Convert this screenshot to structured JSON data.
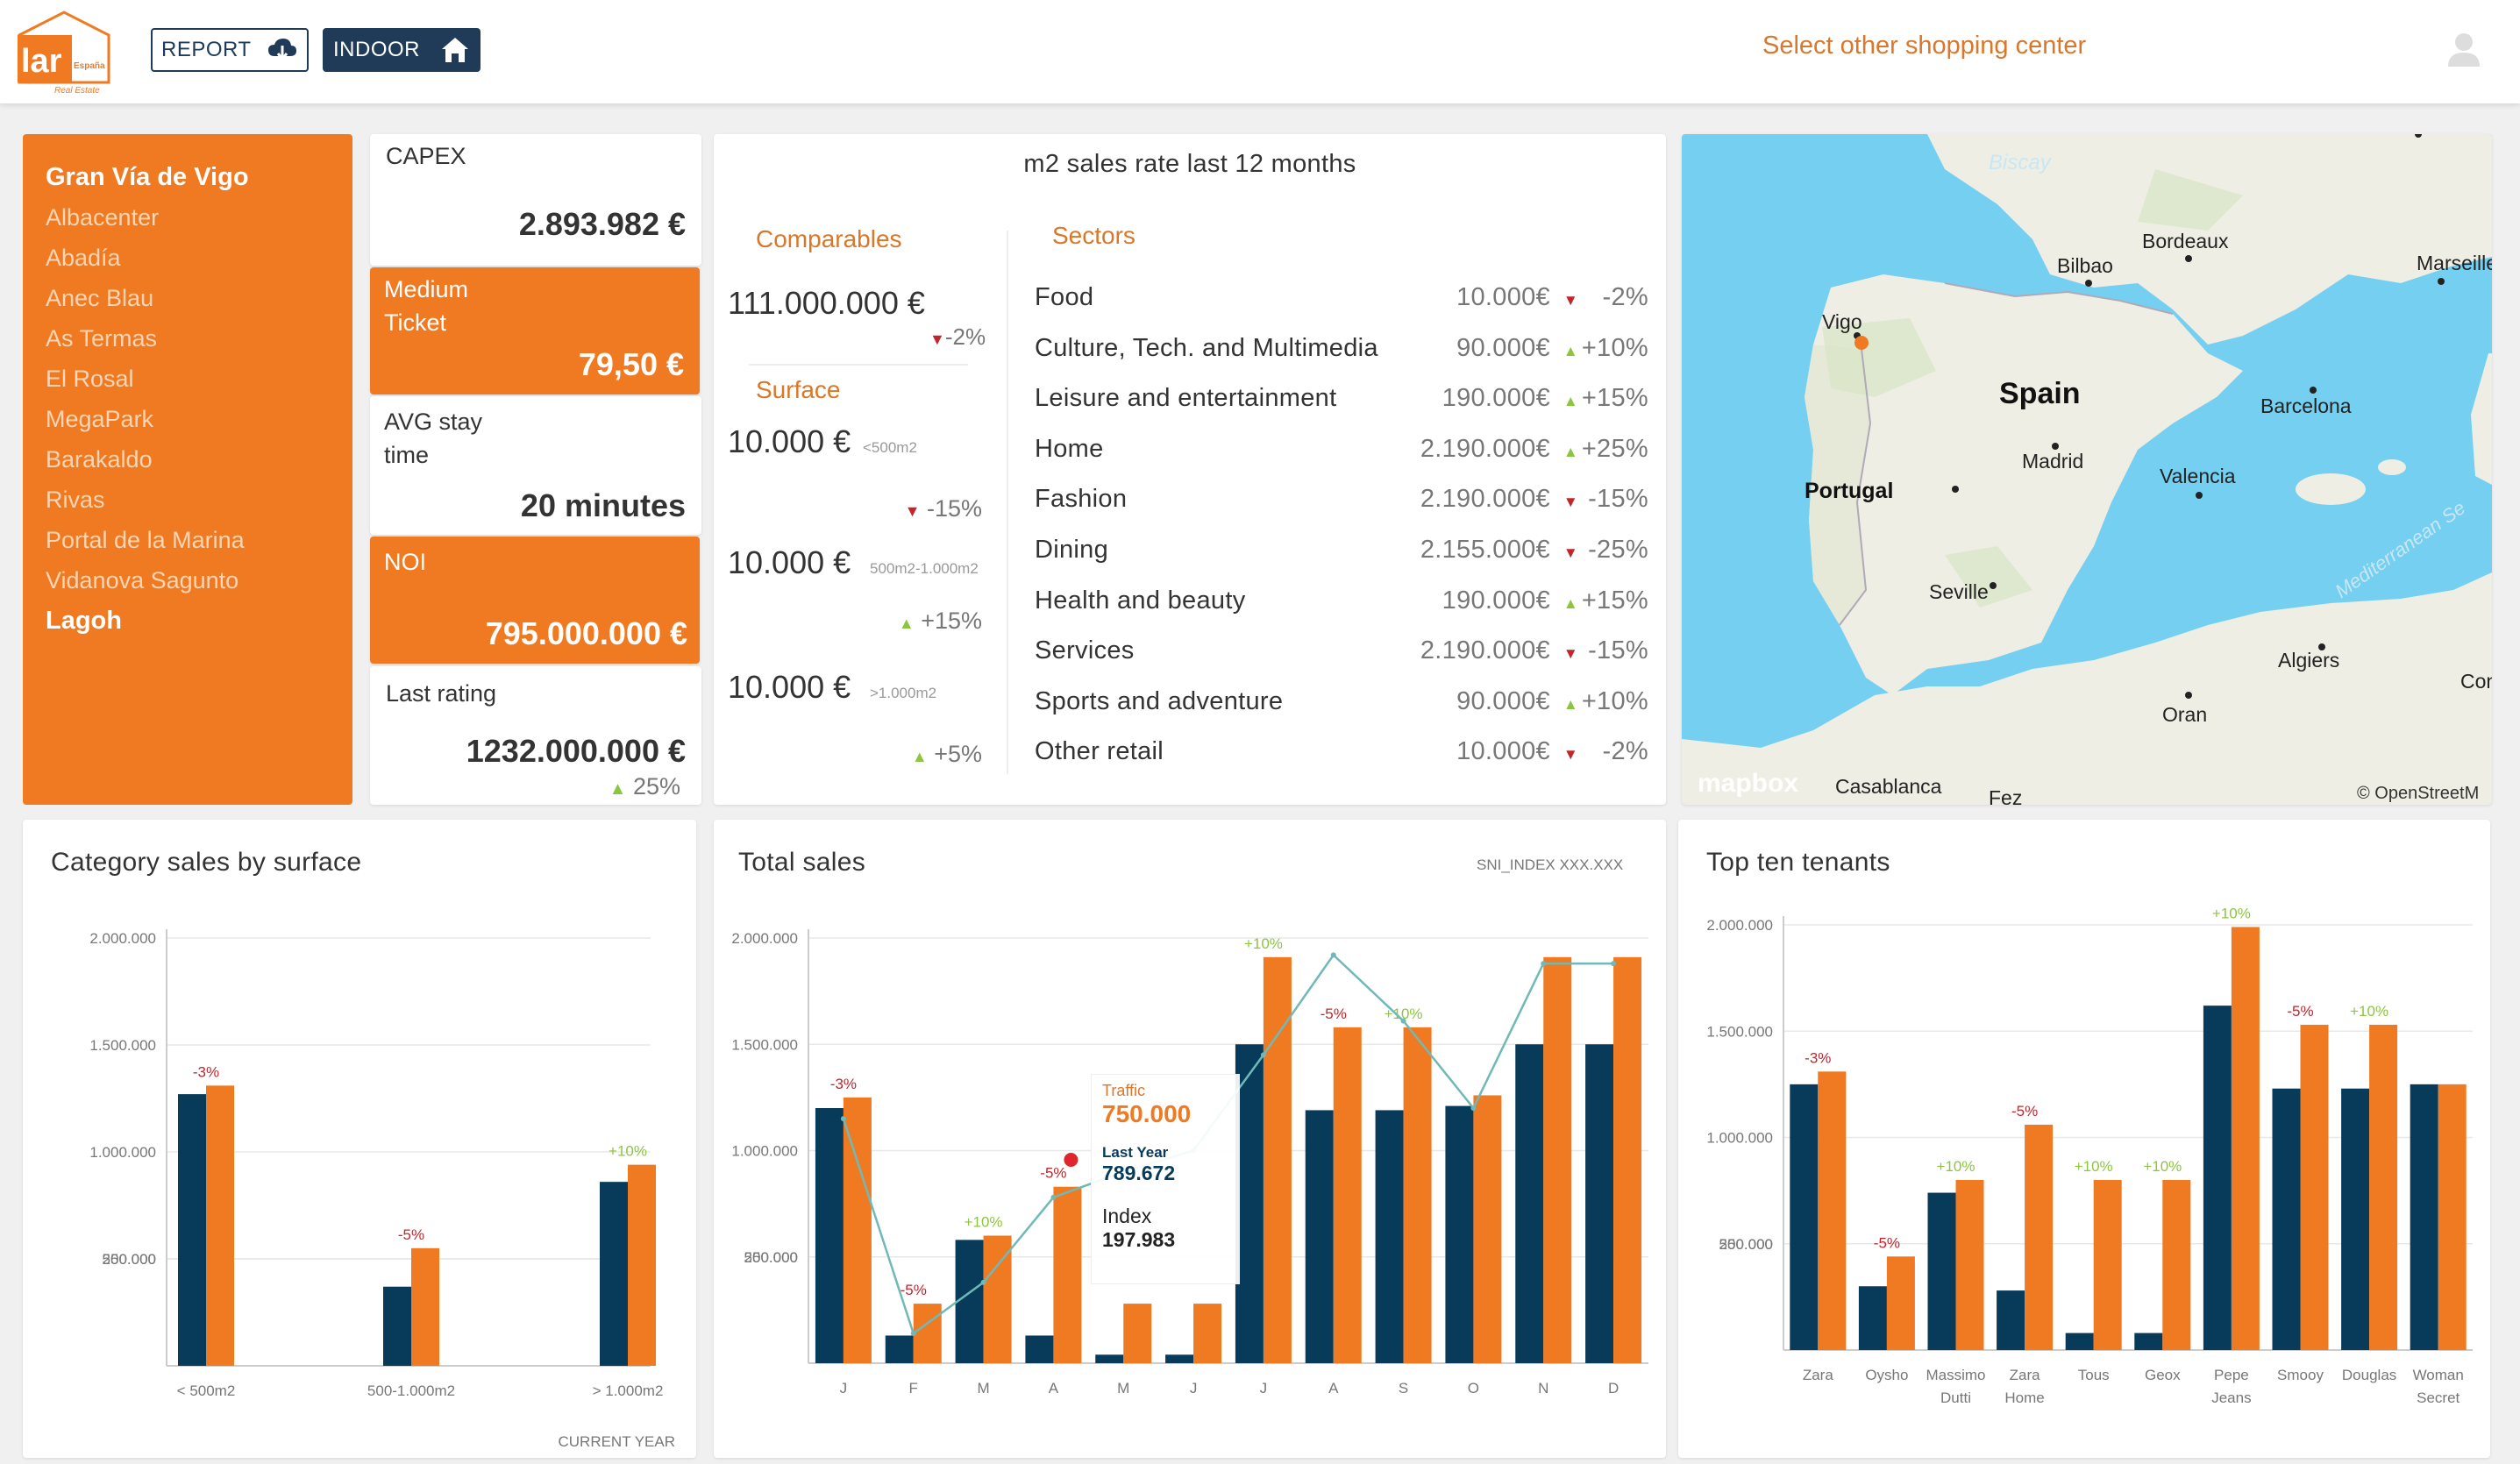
{
  "header": {
    "logo_text": "lar",
    "logo_sub": "España",
    "logo_tag": "Real Estate",
    "report_label": "REPORT",
    "indoor_label": "INDOOR",
    "select_center": "Select other shopping center"
  },
  "centers": [
    "Gran Vía de Vigo",
    "Albacenter",
    "Abadía",
    "Anec Blau",
    "As Termas",
    "El Rosal",
    "MegaPark",
    "Barakaldo",
    "Rivas",
    "Portal de la Marina",
    "Vidanova Sagunto",
    "Lagoh"
  ],
  "kpis": {
    "capex_label": "CAPEX",
    "capex_value": "2.893.982 €",
    "ticket_label_1": "Medium",
    "ticket_label_2": "Ticket",
    "ticket_value": "79,50 €",
    "stay_label_1": "AVG stay",
    "stay_label_2": "time",
    "stay_value": "20 minutes",
    "noi_label": "NOI",
    "noi_value": "795.000.000 €",
    "rating_label": "Last rating",
    "rating_value": "1232.000.000 €",
    "rating_change": "25%"
  },
  "m2": {
    "title": "m2 sales rate last 12 months",
    "comparables_label": "Comparables",
    "comparables_value": "111.000.000 €",
    "comparables_change": "-2%",
    "surface_label": "Surface",
    "surface_rows": [
      {
        "value": "10.000 €",
        "range": "<500m2",
        "change": "-15%",
        "dir": "down"
      },
      {
        "value": "10.000 €",
        "range": "500m2-1.000m2",
        "change": "+15%",
        "dir": "up"
      },
      {
        "value": "10.000 €",
        "range": ">1.000m2",
        "change": "+5%",
        "dir": "up"
      }
    ],
    "sectors_label": "Sectors",
    "sectors": [
      {
        "name": "Food",
        "value": "10.000€",
        "change": "-2%",
        "dir": "down"
      },
      {
        "name": "Culture, Tech. and Multimedia",
        "value": "90.000€",
        "change": "+10%",
        "dir": "up"
      },
      {
        "name": "Leisure and entertainment",
        "value": "190.000€",
        "change": "+15%",
        "dir": "up"
      },
      {
        "name": "Home",
        "value": "2.190.000€",
        "change": "+25%",
        "dir": "up"
      },
      {
        "name": "Fashion",
        "value": "2.190.000€",
        "change": "-15%",
        "dir": "down"
      },
      {
        "name": "Dining",
        "value": "2.155.000€",
        "change": "-25%",
        "dir": "down"
      },
      {
        "name": "Health and beauty",
        "value": "190.000€",
        "change": "+15%",
        "dir": "up"
      },
      {
        "name": "Services",
        "value": "2.190.000€",
        "change": "-15%",
        "dir": "down"
      },
      {
        "name": "Sports and adventure",
        "value": "90.000€",
        "change": "+10%",
        "dir": "up"
      },
      {
        "name": "Other retail",
        "value": "10.000€",
        "change": "-2%",
        "dir": "down"
      }
    ]
  },
  "map": {
    "labels": [
      "Biscay",
      "Bordeaux",
      "Bilbao",
      "Marseille",
      "Vigo",
      "Spain",
      "Barcelona",
      "Madrid",
      "Portugal",
      "Valencia",
      "Seville",
      "Mediterranean Se",
      "Algiers",
      "Const",
      "Oran",
      "Casablanca",
      "Fez"
    ],
    "brand": "mapbox",
    "attribution": "© OpenStreetM"
  },
  "colors": {
    "navy": "#083b5a",
    "orange": "#f07a22",
    "line": "#6fb9b8",
    "up": "#8cc63f",
    "down": "#c0262d"
  },
  "chart_data": [
    {
      "type": "bar",
      "title": "Category sales by surface",
      "footer": "CURRENT YEAR",
      "ylim": [
        0,
        2000000
      ],
      "yticks": [
        "2.000.000",
        "1.500.000",
        "1.000.000",
        "500.000",
        "250.000"
      ],
      "categories": [
        "< 500m2",
        "500-1.000m2",
        "> 1.000m2"
      ],
      "series": [
        {
          "values": [
            1270000,
            370000,
            860000
          ]
        },
        {
          "values": [
            1310000,
            550000,
            940000
          ]
        }
      ],
      "annotations": [
        "-3%",
        "-5%",
        "+10%"
      ]
    },
    {
      "type": "bar",
      "title": "Total sales",
      "subtitle": "SNI_INDEX XXX.XXX",
      "ylim": [
        0,
        2000000
      ],
      "yticks": [
        "2.000.000",
        "1.500.000",
        "1.000.000",
        "500.000",
        "250.000"
      ],
      "categories": [
        "J",
        "F",
        "M",
        "A",
        "M",
        "J",
        "J",
        "A",
        "S",
        "O",
        "N",
        "D"
      ],
      "series": [
        {
          "values": [
            1200000,
            130000,
            580000,
            130000,
            40000,
            40000,
            1500000,
            1190000,
            1190000,
            1210000,
            1500000,
            1500000
          ]
        },
        {
          "values": [
            1250000,
            280000,
            600000,
            830000,
            280000,
            280000,
            1910000,
            1580000,
            1580000,
            1260000,
            1910000,
            1910000
          ]
        }
      ],
      "line": [
        1150000,
        140000,
        380000,
        780000,
        900000,
        1000000,
        1450000,
        1920000,
        1610000,
        1200000,
        1880000,
        1880000
      ],
      "annotations": [
        "-3%",
        "-5%",
        "+10%",
        "-5%",
        "",
        "",
        "+10%",
        "-5%",
        "+10%",
        "",
        "",
        ""
      ],
      "tooltip": {
        "traffic_label": "Traffic",
        "traffic_value": "750.000",
        "ly_label": "Last Year",
        "ly_value": "789.672",
        "index_label": "Index",
        "index_value": "197.983"
      }
    },
    {
      "type": "bar",
      "title": "Top ten tenants",
      "ylim": [
        0,
        2000000
      ],
      "yticks": [
        "2.000.000",
        "1.500.000",
        "1.000.000",
        "500.000",
        "250.000"
      ],
      "categories": [
        "Zara",
        "Oysho",
        "Massimo Dutti",
        "Zara Home",
        "Tous",
        "Geox",
        "Pepe Jeans",
        "Smooy",
        "Douglas",
        "Woman Secret"
      ],
      "series": [
        {
          "values": [
            1250000,
            300000,
            740000,
            280000,
            80000,
            80000,
            1620000,
            1230000,
            1230000,
            1250000
          ]
        },
        {
          "values": [
            1310000,
            440000,
            800000,
            1060000,
            800000,
            800000,
            1990000,
            1530000,
            1530000,
            1250000
          ]
        }
      ],
      "annotations": [
        "-3%",
        "-5%",
        "+10%",
        "-5%",
        "+10%",
        "+10%",
        "+10%",
        "-5%",
        "+10%",
        ""
      ]
    }
  ]
}
